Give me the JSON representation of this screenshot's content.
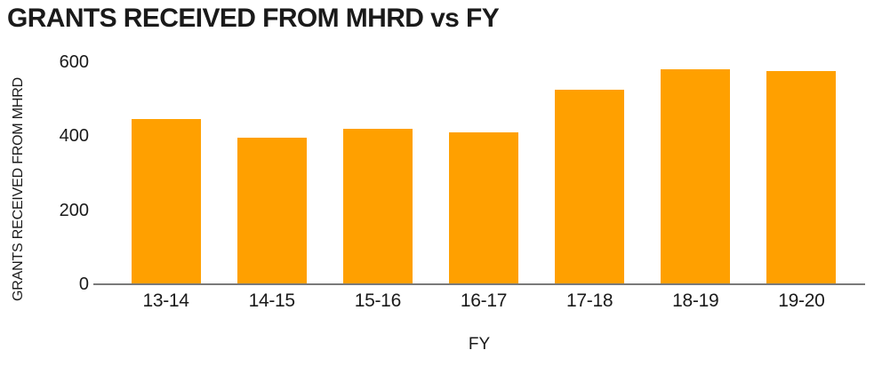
{
  "title": "GRANTS RECEIVED FROM MHRD vs FY",
  "colors": {
    "bar": "#FFA000",
    "axis_line": "#7A7A7A",
    "text": "#1A1A1A",
    "background": "#FFFFFF"
  },
  "chart_data": {
    "type": "bar",
    "title": "GRANTS RECEIVED FROM MHRD vs FY",
    "xlabel": "FY",
    "ylabel": "GRANTS RECEIVED FROM MHRD",
    "categories": [
      "13-14",
      "14-15",
      "15-16",
      "16-17",
      "17-18",
      "18-19",
      "19-20"
    ],
    "values": [
      445,
      395,
      420,
      410,
      525,
      580,
      575
    ],
    "ylim": [
      0,
      600
    ],
    "yticks": [
      0,
      200,
      400,
      600
    ],
    "grid": false,
    "legend": false,
    "bar_color": "#FFA000"
  }
}
